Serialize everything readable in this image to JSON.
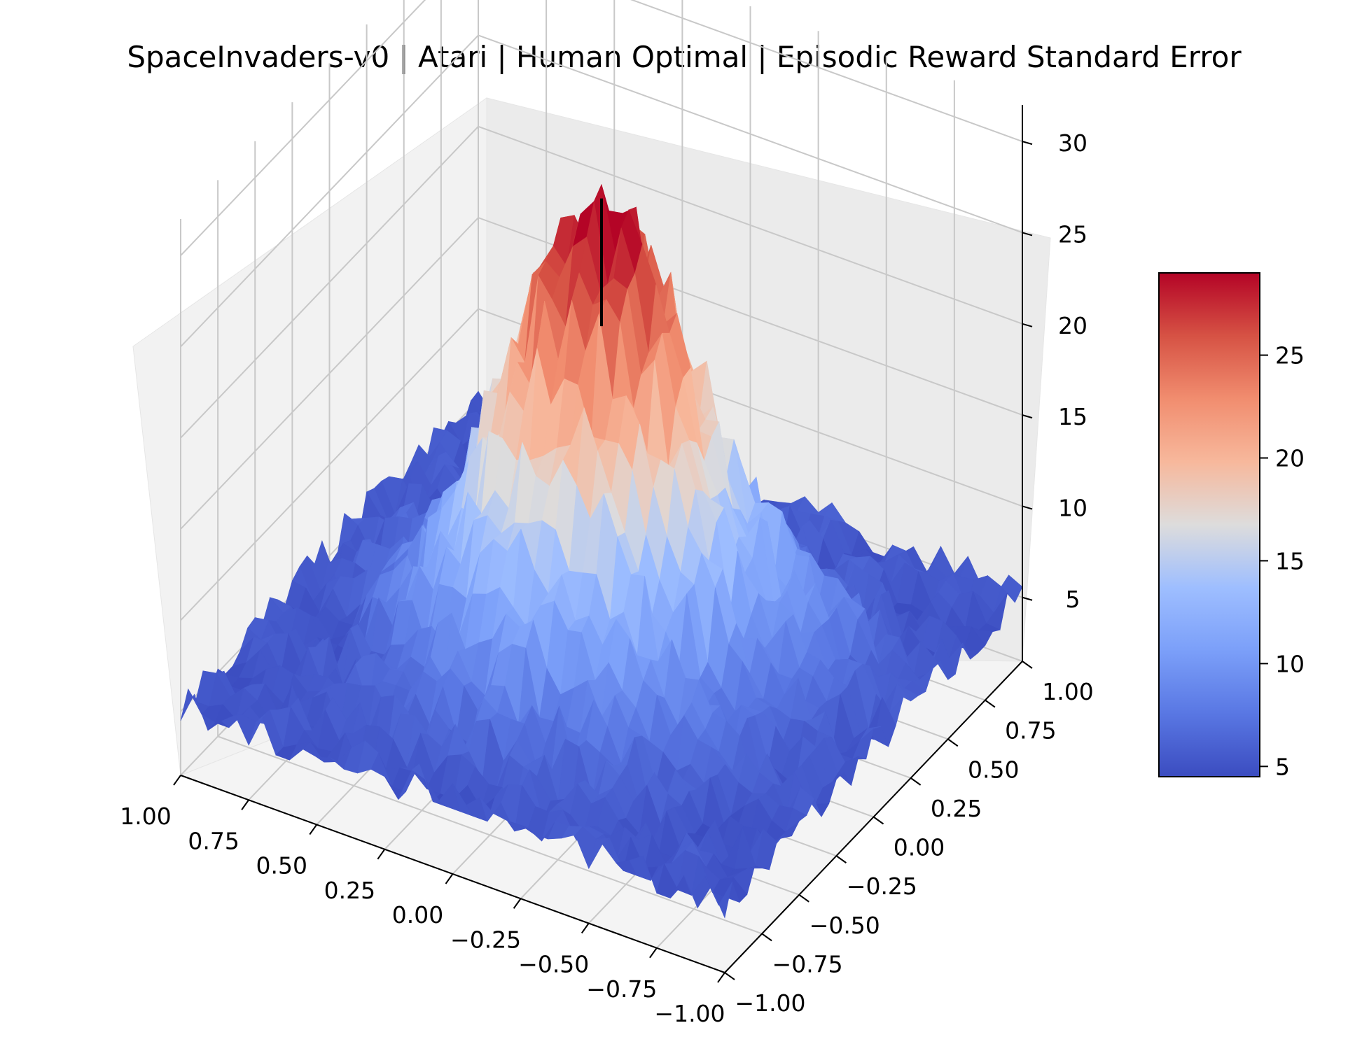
{
  "chart_data": {
    "type": "surface",
    "title": "SpaceInvaders-v0 | Atari | Human Optimal | Episodic Reward Standard Error",
    "xlabel": "",
    "ylabel": "",
    "zlabel": "",
    "colormap": "coolwarm",
    "xlim": [
      -1.0,
      1.0
    ],
    "ylim": [
      -1.0,
      1.0
    ],
    "zlim": [
      1.5,
      32
    ],
    "x_ticks": [
      "−1.00",
      "−0.75",
      "−0.50",
      "−0.25",
      "0.00",
      "0.25",
      "0.50",
      "0.75",
      "1.00"
    ],
    "y_ticks": [
      "−1.00",
      "−0.75",
      "−0.50",
      "−0.25",
      "0.00",
      "0.25",
      "0.50",
      "0.75",
      "1.00"
    ],
    "z_ticks": [
      "5",
      "10",
      "15",
      "20",
      "25",
      "30"
    ],
    "colorbar_range": [
      4.5,
      29
    ],
    "colorbar_ticks": [
      "5",
      "10",
      "15",
      "20",
      "25"
    ],
    "surface_model": {
      "peak_value": 29,
      "peak_x": 0.0,
      "peak_y": 0.0,
      "floor_value": 5,
      "spread": 0.32,
      "value_min": 4.5,
      "value_max": 29
    },
    "peak_marker": {
      "x": 0.0,
      "y": 0.0,
      "z_low": 23,
      "z_high": 30
    }
  }
}
